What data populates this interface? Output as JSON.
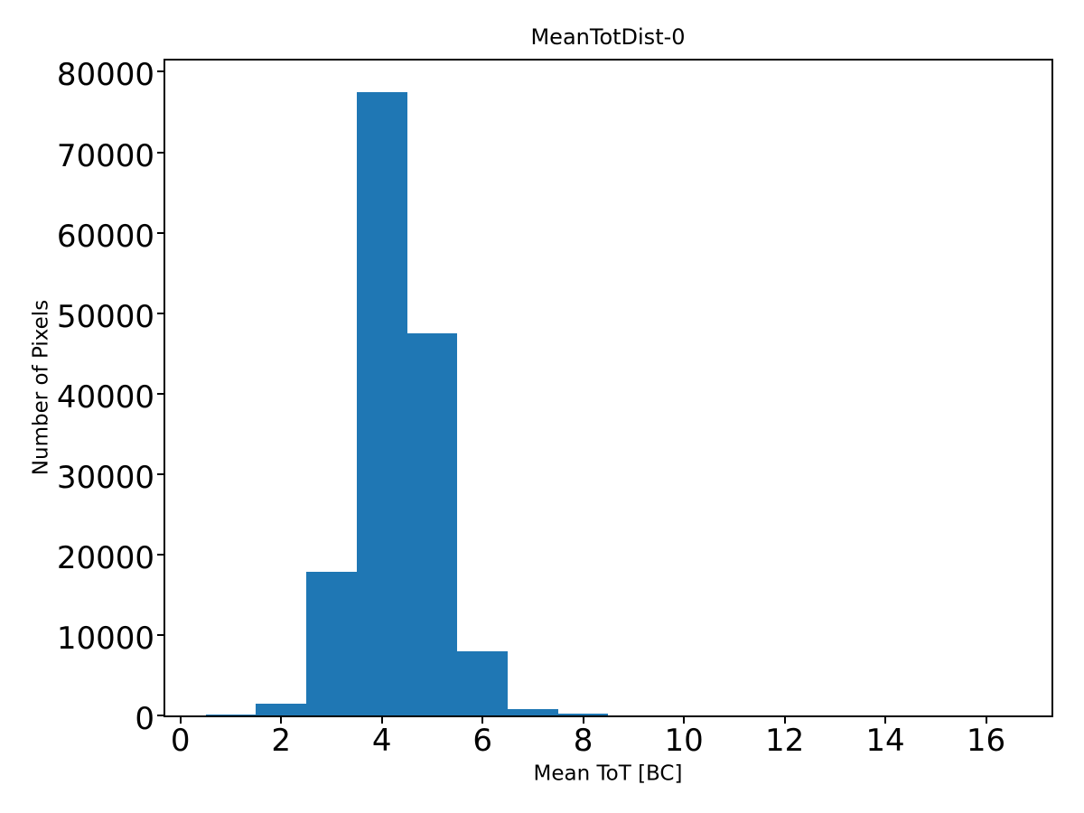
{
  "chart_data": {
    "type": "bar",
    "subtype": "histogram",
    "title": "MeanTotDist-0",
    "xlabel": "Mean ToT [BC]",
    "ylabel": "Number of Pixels",
    "bar_color": "#1f77b4",
    "axis_color": "#000000",
    "background_color": "#ffffff",
    "grid": false,
    "legend": null,
    "bin_edges": [
      0.5,
      1.5,
      2.5,
      3.5,
      4.5,
      5.5,
      6.5,
      7.5,
      8.5
    ],
    "counts": [
      150,
      1500,
      17800,
      77500,
      47500,
      8000,
      800,
      200
    ],
    "xlim": [
      -0.3,
      17.3
    ],
    "ylim": [
      0,
      81400
    ],
    "xticks": [
      0,
      2,
      4,
      6,
      8,
      10,
      12,
      14,
      16
    ],
    "xtick_labels": [
      "0",
      "2",
      "4",
      "6",
      "8",
      "10",
      "12",
      "14",
      "16"
    ],
    "yticks": [
      0,
      10000,
      20000,
      30000,
      40000,
      50000,
      60000,
      70000,
      80000
    ],
    "ytick_labels": [
      "0",
      "10000",
      "20000",
      "30000",
      "40000",
      "50000",
      "60000",
      "70000",
      "80000"
    ]
  }
}
